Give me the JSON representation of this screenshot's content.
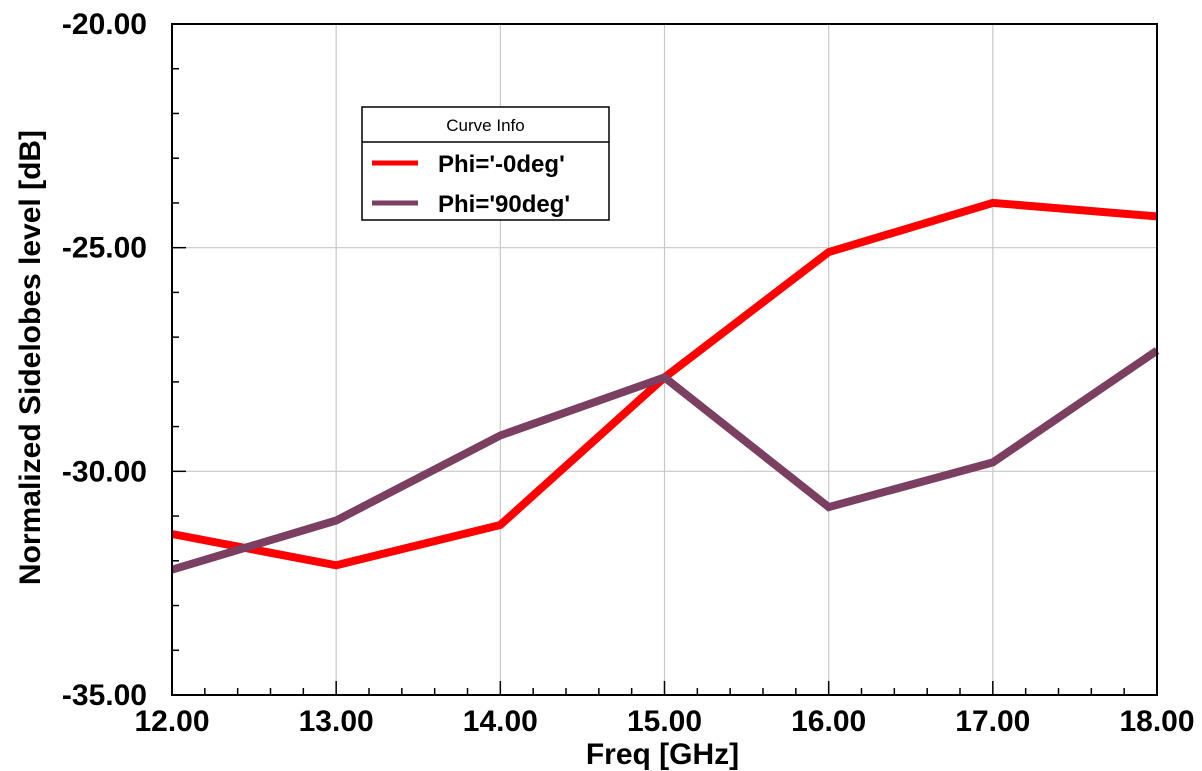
{
  "chart_data": {
    "type": "line",
    "xlabel": "Freq [GHz]",
    "ylabel": "Normalized Sidelobes level [dB]",
    "xlim": [
      12,
      18
    ],
    "ylim": [
      -35,
      -20
    ],
    "x_ticks": [
      12,
      13,
      14,
      15,
      16,
      17,
      18
    ],
    "y_ticks": [
      -35,
      -30,
      -25,
      -20
    ],
    "x_tick_labels": [
      "12.00",
      "13.00",
      "14.00",
      "15.00",
      "16.00",
      "17.00",
      "18.00"
    ],
    "y_tick_labels": [
      "-35.00",
      "-30.00",
      "-25.00",
      "-20.00"
    ],
    "grid": true,
    "legend": {
      "title": "Curve Info",
      "placement": "top-left"
    },
    "series": [
      {
        "name": "Phi='-0deg'",
        "color": "#ff0000",
        "x": [
          12,
          13,
          14,
          15,
          16,
          17,
          18
        ],
        "y": [
          -31.4,
          -32.1,
          -31.2,
          -27.9,
          -25.1,
          -24.0,
          -24.3
        ]
      },
      {
        "name": "Phi='90deg'",
        "color": "#7b3f61",
        "x": [
          12,
          13,
          14,
          15,
          16,
          17,
          18
        ],
        "y": [
          -32.2,
          -31.1,
          -29.2,
          -27.9,
          -30.8,
          -29.8,
          -27.3
        ]
      }
    ]
  }
}
